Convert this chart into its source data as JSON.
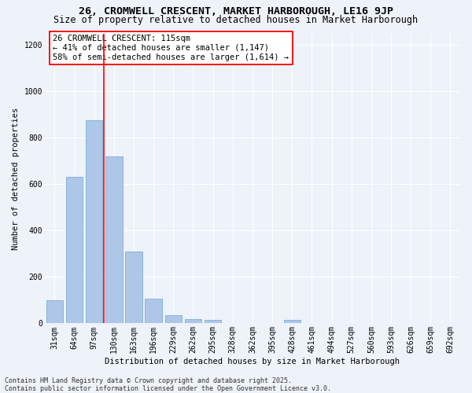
{
  "title": "26, CROMWELL CRESCENT, MARKET HARBOROUGH, LE16 9JP",
  "subtitle": "Size of property relative to detached houses in Market Harborough",
  "xlabel": "Distribution of detached houses by size in Market Harborough",
  "ylabel": "Number of detached properties",
  "categories": [
    "31sqm",
    "64sqm",
    "97sqm",
    "130sqm",
    "163sqm",
    "196sqm",
    "229sqm",
    "262sqm",
    "295sqm",
    "328sqm",
    "362sqm",
    "395sqm",
    "428sqm",
    "461sqm",
    "494sqm",
    "527sqm",
    "560sqm",
    "593sqm",
    "626sqm",
    "659sqm",
    "692sqm"
  ],
  "values": [
    100,
    630,
    875,
    720,
    310,
    105,
    35,
    20,
    15,
    0,
    0,
    0,
    15,
    0,
    0,
    0,
    0,
    0,
    0,
    0,
    0
  ],
  "bar_color": "#aec6e8",
  "bar_edge_color": "#7aafd4",
  "vline_x": 2.5,
  "vline_color": "red",
  "annotation_text": "26 CROMWELL CRESCENT: 115sqm\n← 41% of detached houses are smaller (1,147)\n58% of semi-detached houses are larger (1,614) →",
  "annotation_box_color": "white",
  "annotation_box_edge_color": "red",
  "ylim": [
    0,
    1250
  ],
  "yticks": [
    0,
    200,
    400,
    600,
    800,
    1000,
    1200
  ],
  "footnote": "Contains HM Land Registry data © Crown copyright and database right 2025.\nContains public sector information licensed under the Open Government Licence v3.0.",
  "background_color": "#eef2f9",
  "grid_color": "white",
  "title_fontsize": 9.5,
  "subtitle_fontsize": 8.5,
  "axis_label_fontsize": 7.5,
  "tick_fontsize": 7,
  "annotation_fontsize": 7.5,
  "footnote_fontsize": 6
}
